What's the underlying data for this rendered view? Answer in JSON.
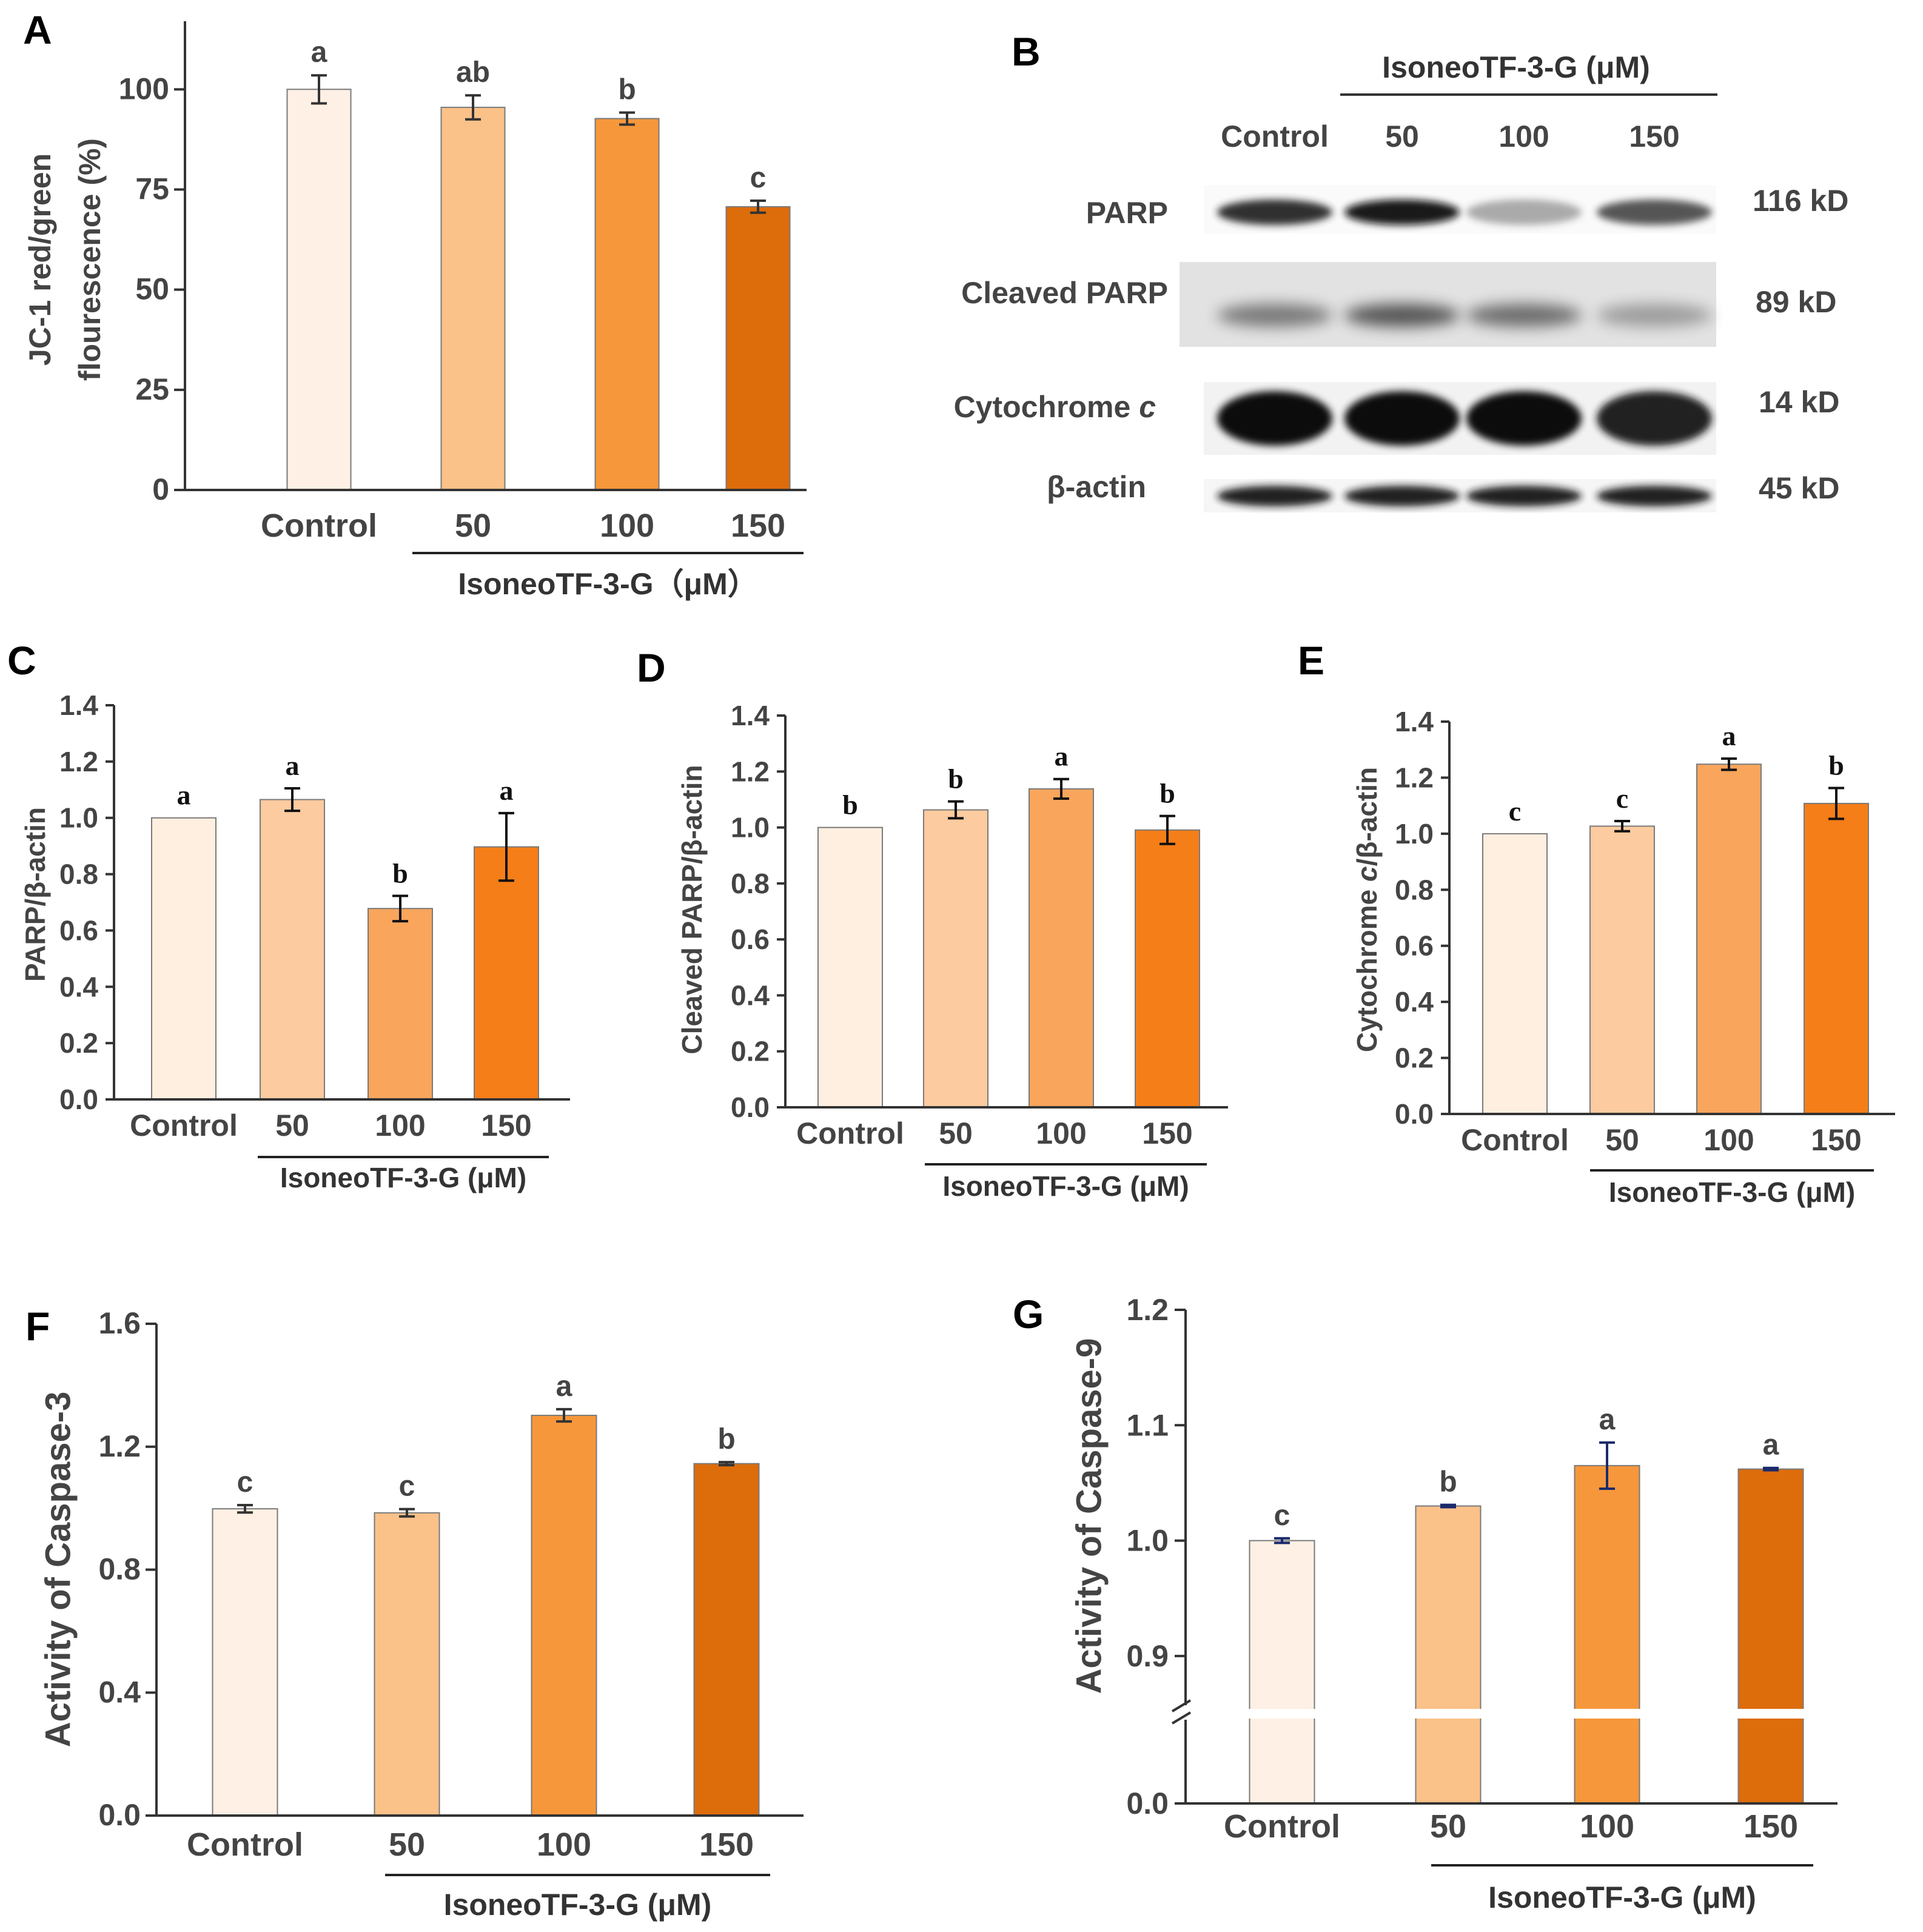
{
  "treatment_label": "IsoneoTF-3-G (μM)",
  "chart_data": [
    {
      "panel": "A",
      "type": "bar",
      "categories": [
        "Control",
        "50",
        "100",
        "150"
      ],
      "values": [
        100,
        95.5,
        92.7,
        70.7
      ],
      "errors": [
        3.5,
        3.0,
        1.5,
        1.5
      ],
      "significance": [
        "a",
        "ab",
        "b",
        "c"
      ],
      "ylabel_lines": [
        "JC-1 red/green",
        "flourescence (%)"
      ],
      "ylim": [
        0,
        117
      ],
      "yticks": [
        0,
        25,
        50,
        75,
        100
      ],
      "ytick_labels": [
        "0",
        "25",
        "50",
        "75",
        "100"
      ],
      "group_label": "IsoneoTF-3-G（μM）",
      "colors": [
        "#FEF0E4",
        "#FAC189",
        "#F6973B",
        "#DD6C0B"
      ]
    },
    {
      "panel": "C",
      "type": "bar",
      "categories": [
        "Control",
        "50",
        "100",
        "150"
      ],
      "values": [
        1.0,
        1.065,
        0.678,
        0.897
      ],
      "errors": [
        0,
        0.04,
        0.045,
        0.12
      ],
      "significance": [
        "a",
        "a",
        "b",
        "a"
      ],
      "ylabel_lines": [
        "PARP/β-actin"
      ],
      "ylim": [
        0,
        1.4
      ],
      "yticks": [
        0,
        0.2,
        0.4,
        0.6,
        0.8,
        1.0,
        1.2,
        1.4
      ],
      "ytick_labels": [
        "0.0",
        "0.2",
        "0.4",
        "0.6",
        "0.8",
        "1.0",
        "1.2",
        "1.4"
      ],
      "group_label": "IsoneoTF-3-G (μM)",
      "colors": [
        "#FFEFE0",
        "#FCCB9F",
        "#F9A55C",
        "#F57E18"
      ]
    },
    {
      "panel": "D",
      "type": "bar",
      "categories": [
        "Control",
        "50",
        "100",
        "150"
      ],
      "values": [
        1.0,
        1.063,
        1.138,
        0.991
      ],
      "errors": [
        0,
        0.03,
        0.035,
        0.05
      ],
      "significance": [
        "b",
        "b",
        "a",
        "b"
      ],
      "ylabel_lines": [
        "Cleaved PARP/β-actin"
      ],
      "ylim": [
        0,
        1.4
      ],
      "yticks": [
        0,
        0.2,
        0.4,
        0.6,
        0.8,
        1.0,
        1.2,
        1.4
      ],
      "ytick_labels": [
        "0.0",
        "0.2",
        "0.4",
        "0.6",
        "0.8",
        "1.0",
        "1.2",
        "1.4"
      ],
      "group_label": "IsoneoTF-3-G (μM)",
      "colors": [
        "#FFEFE0",
        "#FCCB9F",
        "#F9A55C",
        "#F57E18"
      ]
    },
    {
      "panel": "E",
      "type": "bar",
      "categories": [
        "Control",
        "50",
        "100",
        "150"
      ],
      "values": [
        1.0,
        1.027,
        1.248,
        1.108
      ],
      "errors": [
        0,
        0.018,
        0.02,
        0.055
      ],
      "significance": [
        "c",
        "c",
        "a",
        "b"
      ],
      "ylabel_lines": [
        "Cytochrome c/β-actin"
      ],
      "ylim": [
        0,
        1.4
      ],
      "yticks": [
        0,
        0.2,
        0.4,
        0.6,
        0.8,
        1.0,
        1.2,
        1.4
      ],
      "ytick_labels": [
        "0.0",
        "0.2",
        "0.4",
        "0.6",
        "0.8",
        "1.0",
        "1.2",
        "1.4"
      ],
      "group_label": "IsoneoTF-3-G (μM)",
      "colors": [
        "#FFEFE0",
        "#FCCB9F",
        "#F9A55C",
        "#F57E18"
      ]
    },
    {
      "panel": "F",
      "type": "bar",
      "categories": [
        "Control",
        "50",
        "100",
        "150"
      ],
      "values": [
        0.998,
        0.985,
        1.302,
        1.145
      ],
      "errors": [
        0.012,
        0.012,
        0.02,
        0.005
      ],
      "significance": [
        "c",
        "c",
        "a",
        "b"
      ],
      "ylabel_lines": [
        "Activity of Caspase-3"
      ],
      "ylim": [
        0,
        1.6
      ],
      "yticks": [
        0,
        0.4,
        0.8,
        1.2,
        1.6
      ],
      "ytick_labels": [
        "0.0",
        "0.4",
        "0.8",
        "1.2",
        "1.6"
      ],
      "group_label": "IsoneoTF-3-G (μM)",
      "colors": [
        "#FEF0E4",
        "#FAC189",
        "#F6973B",
        "#DD6C0B"
      ]
    },
    {
      "panel": "G",
      "type": "bar",
      "categories": [
        "Control",
        "50",
        "100",
        "150"
      ],
      "values": [
        1.0,
        1.03,
        1.065,
        1.062
      ],
      "errors": [
        0.002,
        0.001,
        0.02,
        0.001
      ],
      "significance": [
        "c",
        "b",
        "a",
        "a"
      ],
      "ylabel_lines": [
        "Activity of Caspase-9"
      ],
      "ylim": [
        0.85,
        1.2
      ],
      "axis_break": [
        0.0,
        0.85
      ],
      "yticks": [
        0.9,
        1.0,
        1.1,
        1.2
      ],
      "ytick_labels": [
        "0.0",
        "0.9",
        "1.0",
        "1.1",
        "1.2"
      ],
      "group_label": "IsoneoTF-3-G (μM)",
      "colors": [
        "#FEF0E4",
        "#FAC189",
        "#F6973B",
        "#DD6C0B"
      ]
    }
  ],
  "blot": {
    "panel": "B",
    "header": "IsoneoTF-3-G (μM)",
    "lanes": [
      "Control",
      "50",
      "100",
      "150"
    ],
    "rows": [
      {
        "label": "PARP",
        "size": "116 kD",
        "intensity": [
          0.85,
          0.95,
          0.35,
          0.7
        ]
      },
      {
        "label": "Cleaved PARP",
        "size": "89 kD",
        "intensity": [
          0.55,
          0.7,
          0.6,
          0.4
        ]
      },
      {
        "label": "Cytochrome c",
        "size": "14 kD",
        "intensity": [
          1.0,
          1.0,
          1.0,
          0.9
        ]
      },
      {
        "label": "β-actin",
        "size": "45 kD",
        "intensity": [
          0.9,
          0.9,
          0.9,
          0.9
        ]
      }
    ]
  },
  "panel_letters": {
    "A": "A",
    "B": "B",
    "C": "C",
    "D": "D",
    "E": "E",
    "F": "F",
    "G": "G"
  }
}
